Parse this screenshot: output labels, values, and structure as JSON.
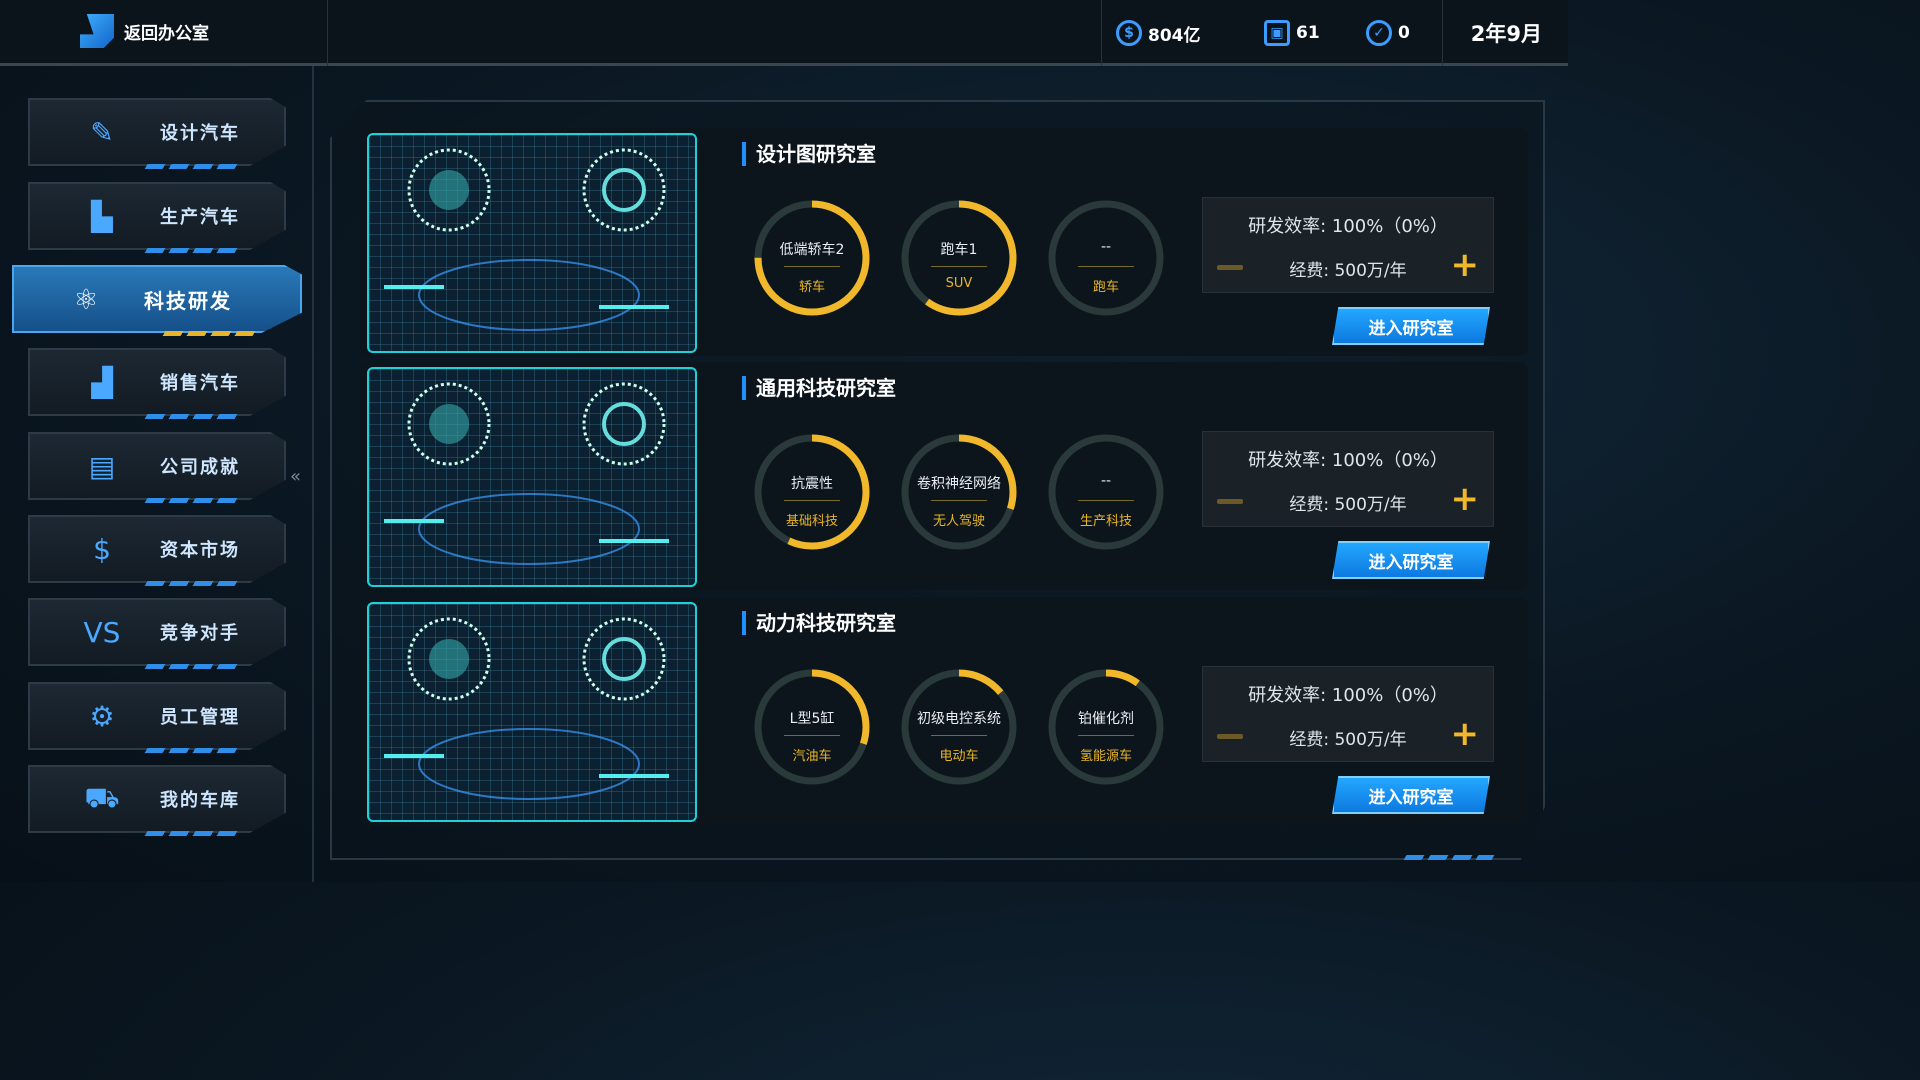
{
  "header": {
    "back_label": "返回办公室",
    "money": "804亿",
    "chips": "61",
    "badges": "0",
    "date": "2年9月"
  },
  "sidebar": {
    "items": [
      {
        "label": "设计汽车",
        "icon": "pencil-gear-icon",
        "glyph": "✎",
        "active": false
      },
      {
        "label": "生产汽车",
        "icon": "factory-icon",
        "glyph": "▙",
        "active": false
      },
      {
        "label": "科技研发",
        "icon": "atom-icon",
        "glyph": "⚛",
        "active": true
      },
      {
        "label": "销售汽车",
        "icon": "bar-chart-icon",
        "glyph": "▟",
        "active": false
      },
      {
        "label": "公司成就",
        "icon": "report-icon",
        "glyph": "▤",
        "active": false
      },
      {
        "label": "资本市场",
        "icon": "money-bag-icon",
        "glyph": "$",
        "active": false
      },
      {
        "label": "竞争对手",
        "icon": "vs-shield-icon",
        "glyph": "VS",
        "active": false
      },
      {
        "label": "员工管理",
        "icon": "users-gear-icon",
        "glyph": "⚙",
        "active": false
      },
      {
        "label": "我的车库",
        "icon": "cars-icon",
        "glyph": "⛟",
        "active": false
      }
    ],
    "collapse": "«"
  },
  "labs": [
    {
      "title": "设计图研究室",
      "image": "car-blueprint-hud",
      "projects": [
        {
          "name": "低端轿车2",
          "category": "轿车",
          "progress": 0.75
        },
        {
          "name": "跑车1",
          "category": "SUV",
          "progress": 0.6
        },
        {
          "name": "--",
          "category": "跑车",
          "progress": 0
        }
      ],
      "efficiency": "研发效率: 100%（0%）",
      "cost": "经费: 500万/年",
      "enter": "进入研究室"
    },
    {
      "title": "通用科技研究室",
      "image": "map-tire-hud",
      "projects": [
        {
          "name": "抗震性",
          "category": "基础科技",
          "progress": 0.57
        },
        {
          "name": "卷积神经网络",
          "category": "无人驾驶",
          "progress": 0.3
        },
        {
          "name": "--",
          "category": "生产科技",
          "progress": 0
        }
      ],
      "efficiency": "研发效率: 100%（0%）",
      "cost": "经费: 500万/年",
      "enter": "进入研究室"
    },
    {
      "title": "动力科技研究室",
      "image": "engine-charts-hud",
      "projects": [
        {
          "name": "L型5缸",
          "category": "汽油车",
          "progress": 0.3
        },
        {
          "name": "初级电控系统",
          "category": "电动车",
          "progress": 0.14
        },
        {
          "name": "铂催化剂",
          "category": "氢能源车",
          "progress": 0.1
        }
      ],
      "efficiency": "研发效率: 100%（0%）",
      "cost": "经费: 500万/年",
      "enter": "进入研究室"
    }
  ],
  "colors": {
    "accent": "#1e90ff",
    "progress": "#f0b82a",
    "track": "#2a3a3a"
  }
}
